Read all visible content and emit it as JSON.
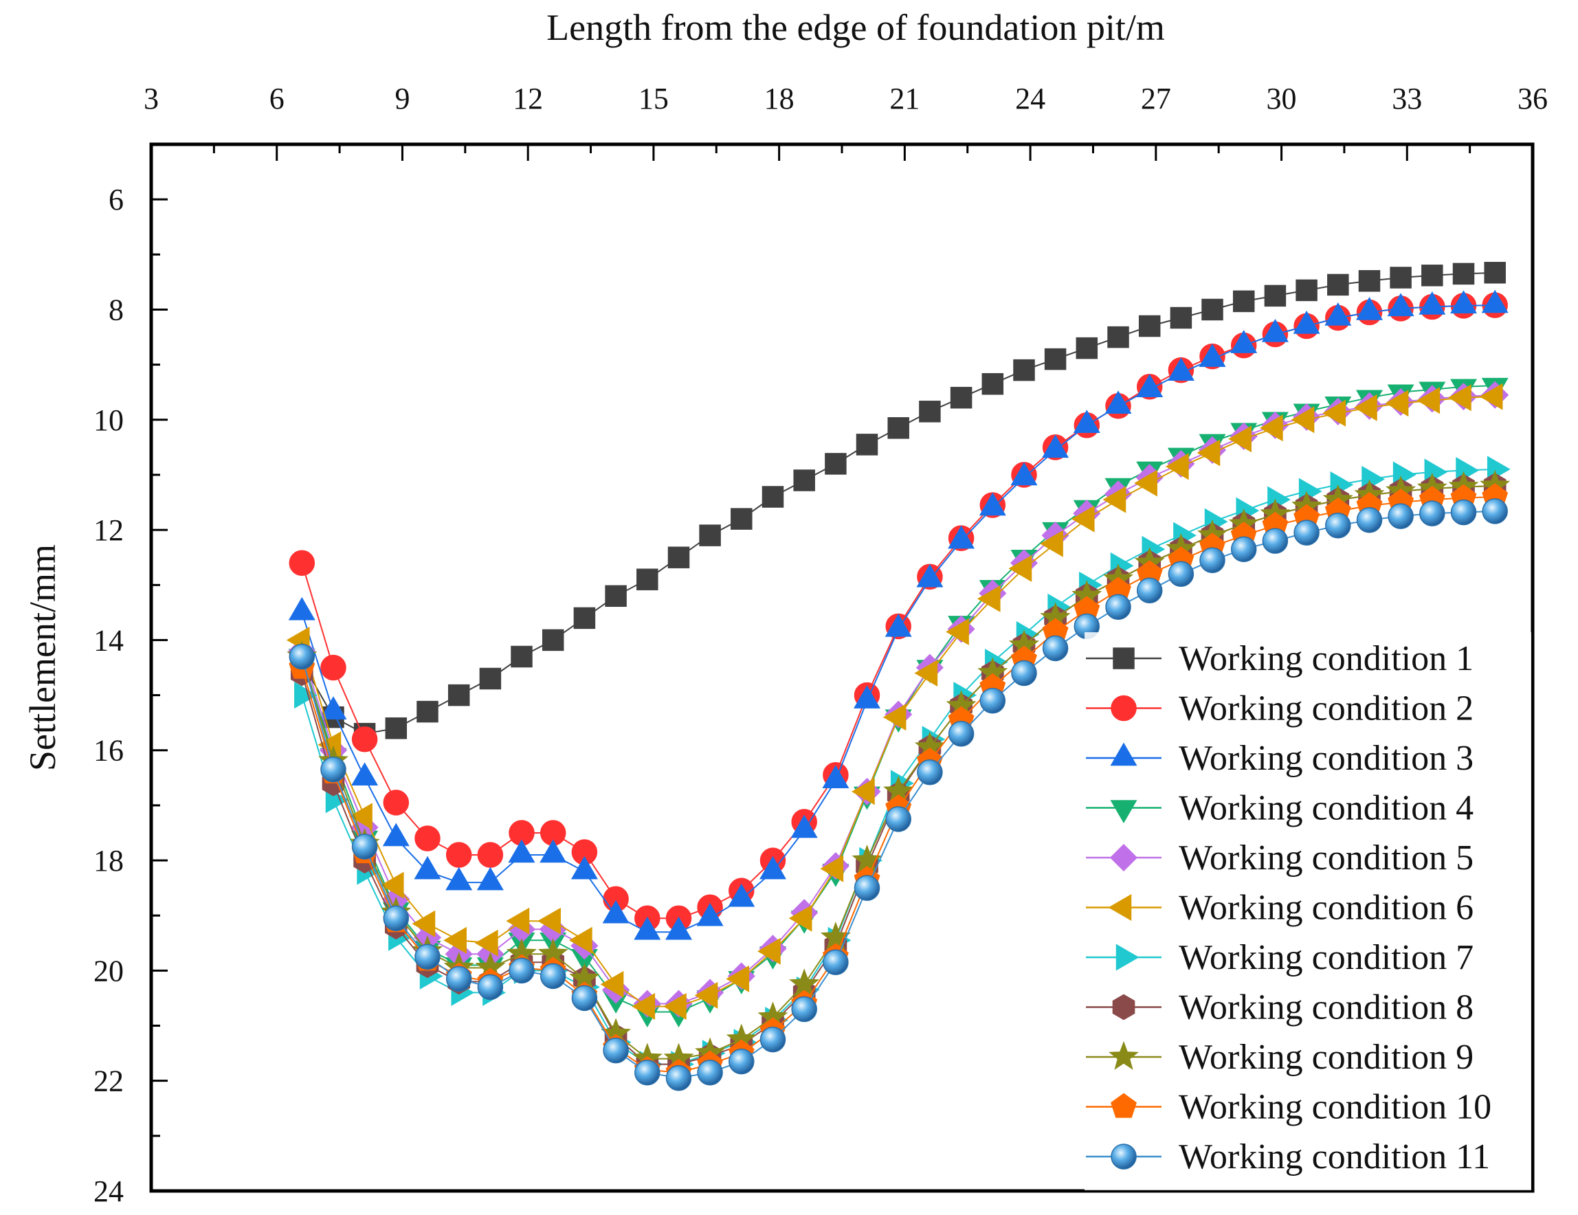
{
  "chart_data": {
    "type": "line",
    "title": "",
    "xlabel": "Length from the edge of foundation pit/m",
    "ylabel": "Settlement/mm",
    "xlim": [
      3,
      36
    ],
    "ylim": [
      24,
      5
    ],
    "x_axis_position": "top",
    "y_axis_inverted": true,
    "xticks": [
      3,
      6,
      9,
      12,
      15,
      18,
      21,
      24,
      27,
      30,
      33,
      36
    ],
    "xtick_labels": [
      "3",
      "6",
      "9",
      "12",
      "15",
      "18",
      "21",
      "24",
      "27",
      "30",
      "33",
      "36"
    ],
    "yticks": [
      6,
      8,
      10,
      12,
      14,
      16,
      18,
      20,
      22,
      24
    ],
    "ytick_labels": [
      "6",
      "8",
      "10",
      "12",
      "14",
      "16",
      "18",
      "20",
      "22",
      "24"
    ],
    "grid": false,
    "legend_position": "bottom-right",
    "x": [
      6.6,
      7.35,
      8.1,
      8.85,
      9.6,
      10.35,
      11.1,
      11.85,
      12.6,
      13.35,
      14.1,
      14.85,
      15.6,
      16.35,
      17.1,
      17.85,
      18.6,
      19.35,
      20.1,
      20.85,
      21.6,
      22.35,
      23.1,
      23.85,
      24.6,
      25.35,
      26.1,
      26.85,
      27.6,
      28.35,
      29.1,
      29.85,
      30.6,
      31.35,
      32.1,
      32.85,
      33.6,
      34.35,
      35.1
    ],
    "series": [
      {
        "name": "Working condition 1",
        "marker": "square",
        "color": "#404040",
        "values": [
          14.4,
          15.4,
          15.7,
          15.6,
          15.3,
          15.0,
          14.7,
          14.3,
          14.0,
          13.6,
          13.2,
          12.9,
          12.5,
          12.1,
          11.8,
          11.4,
          11.1,
          10.8,
          10.45,
          10.15,
          9.85,
          9.6,
          9.35,
          9.1,
          8.9,
          8.7,
          8.5,
          8.3,
          8.15,
          8.0,
          7.85,
          7.75,
          7.65,
          7.55,
          7.48,
          7.42,
          7.38,
          7.35,
          7.33
        ]
      },
      {
        "name": "Working condition 2",
        "marker": "circle",
        "color": "#ff3030",
        "values": [
          12.6,
          14.5,
          15.8,
          16.95,
          17.6,
          17.9,
          17.9,
          17.5,
          17.5,
          17.85,
          18.7,
          19.05,
          19.05,
          18.85,
          18.55,
          18.0,
          17.3,
          16.45,
          15.0,
          13.75,
          12.85,
          12.15,
          11.55,
          11.0,
          10.5,
          10.1,
          9.75,
          9.4,
          9.1,
          8.85,
          8.65,
          8.45,
          8.3,
          8.15,
          8.05,
          7.98,
          7.95,
          7.93,
          7.92
        ]
      },
      {
        "name": "Working condition 3",
        "marker": "triangle-up",
        "color": "#1a6fe8",
        "values": [
          13.5,
          15.3,
          16.5,
          17.6,
          18.2,
          18.4,
          18.4,
          17.9,
          17.9,
          18.2,
          19.0,
          19.3,
          19.3,
          19.05,
          18.7,
          18.2,
          17.45,
          16.55,
          15.1,
          13.8,
          12.9,
          12.2,
          11.6,
          11.05,
          10.55,
          10.1,
          9.75,
          9.45,
          9.15,
          8.9,
          8.65,
          8.45,
          8.3,
          8.15,
          8.05,
          7.98,
          7.95,
          7.93,
          7.92
        ]
      },
      {
        "name": "Working condition 4",
        "marker": "triangle-down",
        "color": "#16b070",
        "values": [
          14.3,
          16.1,
          17.6,
          18.9,
          19.6,
          19.9,
          19.9,
          19.45,
          19.45,
          19.75,
          20.5,
          20.75,
          20.75,
          20.5,
          20.15,
          19.7,
          19.05,
          18.2,
          16.8,
          15.4,
          14.5,
          13.7,
          13.05,
          12.5,
          12.0,
          11.6,
          11.2,
          10.9,
          10.65,
          10.4,
          10.2,
          10.0,
          9.85,
          9.72,
          9.6,
          9.5,
          9.45,
          9.4,
          9.38
        ]
      },
      {
        "name": "Working condition 5",
        "marker": "diamond",
        "color": "#c070e8",
        "values": [
          14.2,
          16.0,
          17.4,
          18.7,
          19.4,
          19.7,
          19.7,
          19.25,
          19.25,
          19.55,
          20.35,
          20.6,
          20.6,
          20.4,
          20.1,
          19.6,
          18.95,
          18.1,
          16.75,
          15.35,
          14.5,
          13.8,
          13.15,
          12.6,
          12.1,
          11.7,
          11.35,
          11.05,
          10.8,
          10.55,
          10.3,
          10.1,
          9.95,
          9.85,
          9.75,
          9.68,
          9.62,
          9.58,
          9.55
        ]
      },
      {
        "name": "Working condition 6",
        "marker": "triangle-left",
        "color": "#d99a00",
        "values": [
          14.0,
          15.9,
          17.2,
          18.45,
          19.15,
          19.45,
          19.5,
          19.1,
          19.1,
          19.45,
          20.25,
          20.65,
          20.65,
          20.45,
          20.15,
          19.65,
          19.05,
          18.15,
          16.75,
          15.4,
          14.6,
          13.85,
          13.25,
          12.7,
          12.25,
          11.8,
          11.45,
          11.15,
          10.85,
          10.6,
          10.35,
          10.15,
          10.0,
          9.88,
          9.78,
          9.7,
          9.65,
          9.6,
          9.58
        ]
      },
      {
        "name": "Working condition 7",
        "marker": "triangle-right",
        "color": "#20c8d0",
        "values": [
          15.0,
          16.9,
          18.2,
          19.4,
          20.1,
          20.4,
          20.4,
          20.0,
          20.0,
          20.3,
          21.3,
          21.7,
          21.7,
          21.5,
          21.3,
          20.9,
          20.35,
          19.45,
          18.0,
          16.6,
          15.8,
          15.0,
          14.4,
          13.9,
          13.4,
          13.0,
          12.65,
          12.35,
          12.1,
          11.85,
          11.65,
          11.45,
          11.3,
          11.18,
          11.08,
          11.0,
          10.95,
          10.92,
          10.9
        ]
      },
      {
        "name": "Working condition 8",
        "marker": "hexagon",
        "color": "#8b4a4a",
        "values": [
          14.6,
          16.6,
          18.0,
          19.2,
          19.9,
          20.2,
          20.2,
          19.85,
          19.85,
          20.15,
          21.2,
          21.7,
          21.7,
          21.55,
          21.35,
          20.95,
          20.4,
          19.55,
          18.1,
          16.8,
          15.95,
          15.2,
          14.6,
          14.1,
          13.6,
          13.2,
          12.9,
          12.6,
          12.35,
          12.1,
          11.9,
          11.72,
          11.58,
          11.46,
          11.37,
          11.3,
          11.25,
          11.22,
          11.2
        ]
      },
      {
        "name": "Working condition 9",
        "marker": "star",
        "color": "#8a8a18",
        "values": [
          14.3,
          16.2,
          17.7,
          18.95,
          19.65,
          19.95,
          19.95,
          19.7,
          19.7,
          20.15,
          21.15,
          21.6,
          21.6,
          21.5,
          21.25,
          20.85,
          20.25,
          19.4,
          18.0,
          16.75,
          15.95,
          15.2,
          14.6,
          14.1,
          13.6,
          13.2,
          12.9,
          12.6,
          12.35,
          12.1,
          11.9,
          11.72,
          11.58,
          11.46,
          11.37,
          11.3,
          11.25,
          11.22,
          11.2
        ]
      },
      {
        "name": "Working condition 10",
        "marker": "pentagon",
        "color": "#ff6a00",
        "values": [
          14.5,
          16.4,
          17.85,
          19.1,
          19.8,
          20.1,
          20.2,
          19.95,
          20.0,
          20.45,
          21.4,
          21.8,
          21.85,
          21.7,
          21.5,
          21.1,
          20.6,
          19.75,
          18.35,
          17.05,
          16.2,
          15.45,
          14.85,
          14.35,
          13.85,
          13.45,
          13.1,
          12.8,
          12.55,
          12.3,
          12.1,
          11.92,
          11.78,
          11.66,
          11.56,
          11.5,
          11.45,
          11.42,
          11.4
        ]
      },
      {
        "name": "Working condition 11",
        "marker": "sphere",
        "color": "#3a8fd0",
        "values": [
          14.3,
          16.35,
          17.75,
          19.05,
          19.75,
          20.15,
          20.3,
          20.0,
          20.1,
          20.5,
          21.45,
          21.85,
          21.95,
          21.85,
          21.65,
          21.25,
          20.7,
          19.85,
          18.5,
          17.25,
          16.4,
          15.7,
          15.1,
          14.6,
          14.15,
          13.75,
          13.4,
          13.1,
          12.8,
          12.55,
          12.35,
          12.2,
          12.05,
          11.92,
          11.82,
          11.75,
          11.7,
          11.68,
          11.66
        ]
      }
    ]
  }
}
